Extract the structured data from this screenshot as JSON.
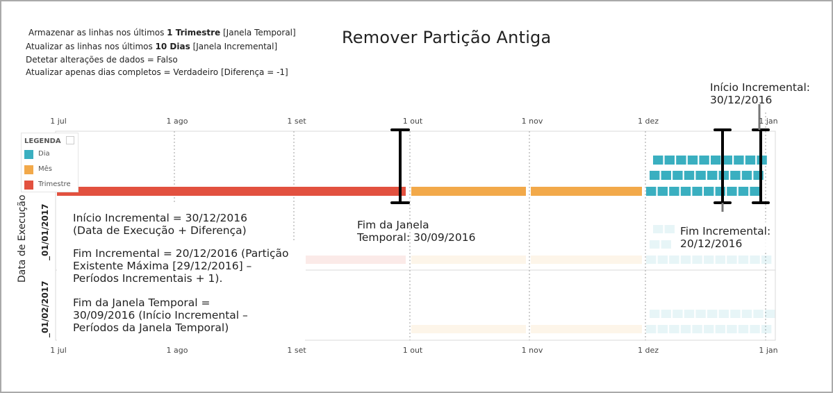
{
  "title": "Remover Partição Antiga",
  "config": {
    "line1": {
      "pre": "Armazenar as linhas nos últimos ",
      "bold": "1 Trimestre",
      "post": " [Janela Temporal]"
    },
    "line2": {
      "pre": "Atualizar as linhas nos últimos ",
      "bold": "10 Dias",
      "post": " [Janela Incremental]"
    },
    "line3": "Detetar alterações de dados = Falso",
    "line4": "Atualizar apenas dias completos = Verdadeiro [Diferença = -1]"
  },
  "axis": {
    "y_title": "Data de Execução",
    "months": [
      "1 jul",
      "1 ago",
      "1 set",
      "1 out",
      "1 nov",
      "1 dez",
      "1 jan"
    ],
    "rows": [
      "_01/01/2017",
      "_01/02/2017"
    ]
  },
  "legend": {
    "title": "LEGENDA",
    "items": [
      {
        "label": "Dia",
        "color": "#3aafc0"
      },
      {
        "label": "Mês",
        "color": "#f2a94a"
      },
      {
        "label": "Trimestre",
        "color": "#e2513f"
      }
    ]
  },
  "annotations": {
    "inicio_incremental_top": {
      "line1": "Início Incremental:",
      "line2": "30/12/2016"
    },
    "fim_janela": {
      "line1": "Fim da Janela",
      "line2": "Temporal: 30/09/2016"
    },
    "fim_incremental": {
      "line1": "Fim Incremental:",
      "line2": "20/12/2016"
    },
    "formula_inicio": {
      "line1": "Início Incremental = 30/12/2016",
      "line2": "(Data de Execução + Diferença)"
    },
    "formula_fim_inc": {
      "line1": "Fim Incremental = 20/12/2016 (Partição",
      "line2": "Existente Máxima [29/12/2016] –",
      "line3": "Períodos Incrementais + 1)."
    },
    "formula_fim_janela": {
      "line1": "Fim da Janela Temporal =",
      "line2": "30/09/2016 (Início Incremental –",
      "line3": "Períodos da Janela Temporal)"
    }
  }
}
